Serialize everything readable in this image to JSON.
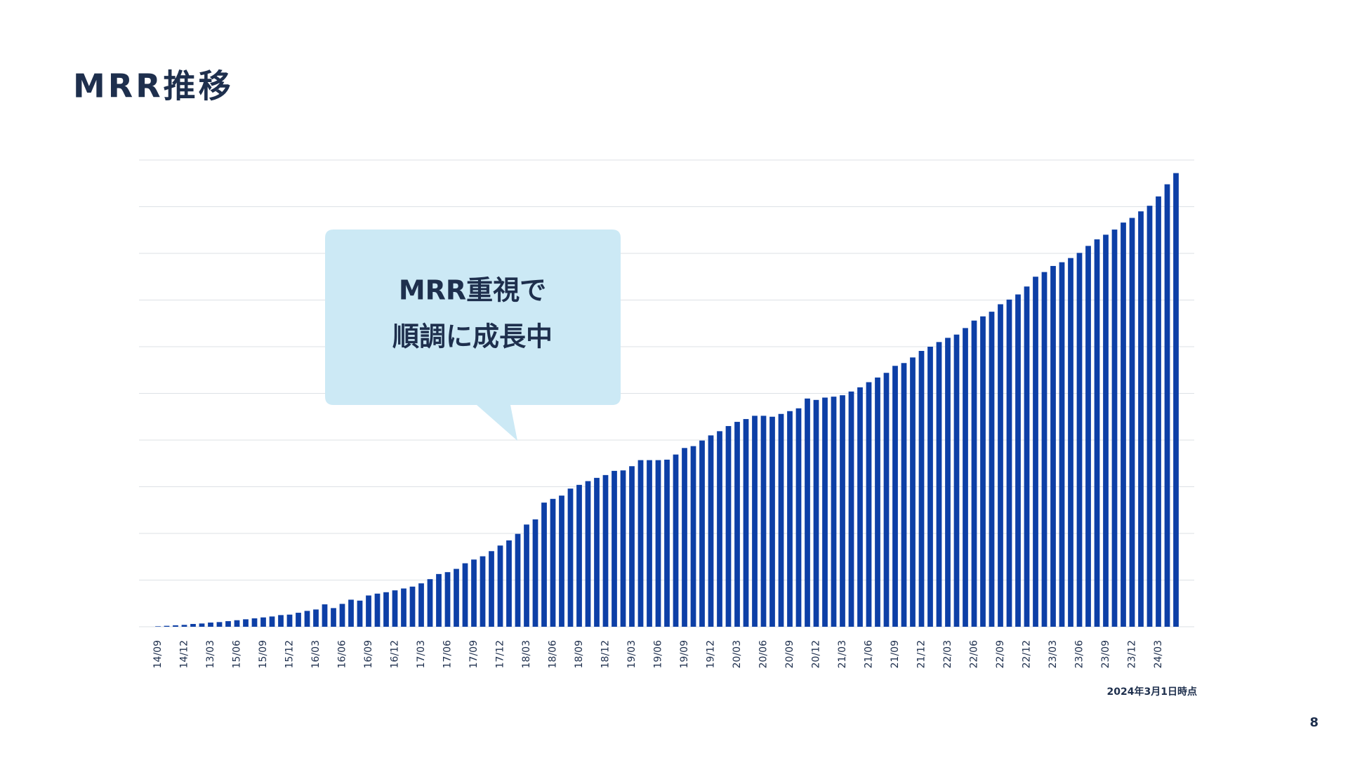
{
  "title": "MRR推移",
  "callout": {
    "lines": [
      "MRR重視で",
      "順調に成長中"
    ]
  },
  "note": "2024年3月1日時点",
  "page_number": "8",
  "chart_data": {
    "type": "bar",
    "categories": [
      "14/09",
      null,
      null,
      "14/12",
      null,
      null,
      "13/03",
      null,
      null,
      "15/06",
      null,
      null,
      "15/09",
      null,
      null,
      "15/12",
      null,
      null,
      "16/03",
      null,
      null,
      "16/06",
      null,
      null,
      "16/09",
      null,
      null,
      "16/12",
      null,
      null,
      "17/03",
      null,
      null,
      "17/06",
      null,
      null,
      "17/09",
      null,
      null,
      "17/12",
      null,
      null,
      "18/03",
      null,
      null,
      "18/06",
      null,
      null,
      "18/09",
      null,
      null,
      "18/12",
      null,
      null,
      "19/03",
      null,
      null,
      "19/06",
      null,
      null,
      "19/09",
      null,
      null,
      "19/12",
      null,
      null,
      "20/03",
      null,
      null,
      "20/06",
      null,
      null,
      "20/09",
      null,
      null,
      "20/12",
      null,
      null,
      "21/03",
      null,
      null,
      "21/06",
      null,
      null,
      "21/09",
      null,
      null,
      "21/12",
      null,
      null,
      "22/03",
      null,
      null,
      "22/06",
      null,
      null,
      "22/09",
      null,
      null,
      "22/12",
      null,
      null,
      "23/03",
      null,
      null,
      "23/06",
      null,
      null,
      "23/09",
      null,
      null,
      "23/12",
      null,
      null,
      "24/03",
      null,
      null
    ],
    "values": [
      0.1,
      0.2,
      0.3,
      0.4,
      0.6,
      0.7,
      0.9,
      1.0,
      1.2,
      1.4,
      1.6,
      1.8,
      2.0,
      2.2,
      2.5,
      2.6,
      3.0,
      3.4,
      3.7,
      4.8,
      4.0,
      4.9,
      5.8,
      5.6,
      6.7,
      7.1,
      7.4,
      7.8,
      8.2,
      8.6,
      9.3,
      10.2,
      11.3,
      11.7,
      12.4,
      13.6,
      14.4,
      15.1,
      16.2,
      17.4,
      18.5,
      19.9,
      21.9,
      23.0,
      26.6,
      27.4,
      28.1,
      29.6,
      30.4,
      31.2,
      31.9,
      32.5,
      33.4,
      33.5,
      34.4,
      35.7,
      35.7,
      35.7,
      35.8,
      36.9,
      38.3,
      38.7,
      39.9,
      41.0,
      41.9,
      43.0,
      43.9,
      44.5,
      45.2,
      45.2,
      45.0,
      45.6,
      46.2,
      46.8,
      48.9,
      48.6,
      49.1,
      49.3,
      49.6,
      50.4,
      51.3,
      52.4,
      53.4,
      54.4,
      55.9,
      56.5,
      57.7,
      59.1,
      60.0,
      61.0,
      61.9,
      62.6,
      64.0,
      65.6,
      66.5,
      67.5,
      69.1,
      70.1,
      71.2,
      72.9,
      75.0,
      76.0,
      77.3,
      78.1,
      79.0,
      80.1,
      81.6,
      83.0,
      84.0,
      85.1,
      86.6,
      87.6,
      89.0,
      90.2,
      92.2,
      94.8,
      97.2
    ],
    "color": "#0d3fa6",
    "ylim": [
      0,
      100
    ],
    "yticks": [
      0,
      10,
      20,
      30,
      40,
      50,
      60,
      70,
      80,
      90,
      100
    ],
    "grid": true
  }
}
